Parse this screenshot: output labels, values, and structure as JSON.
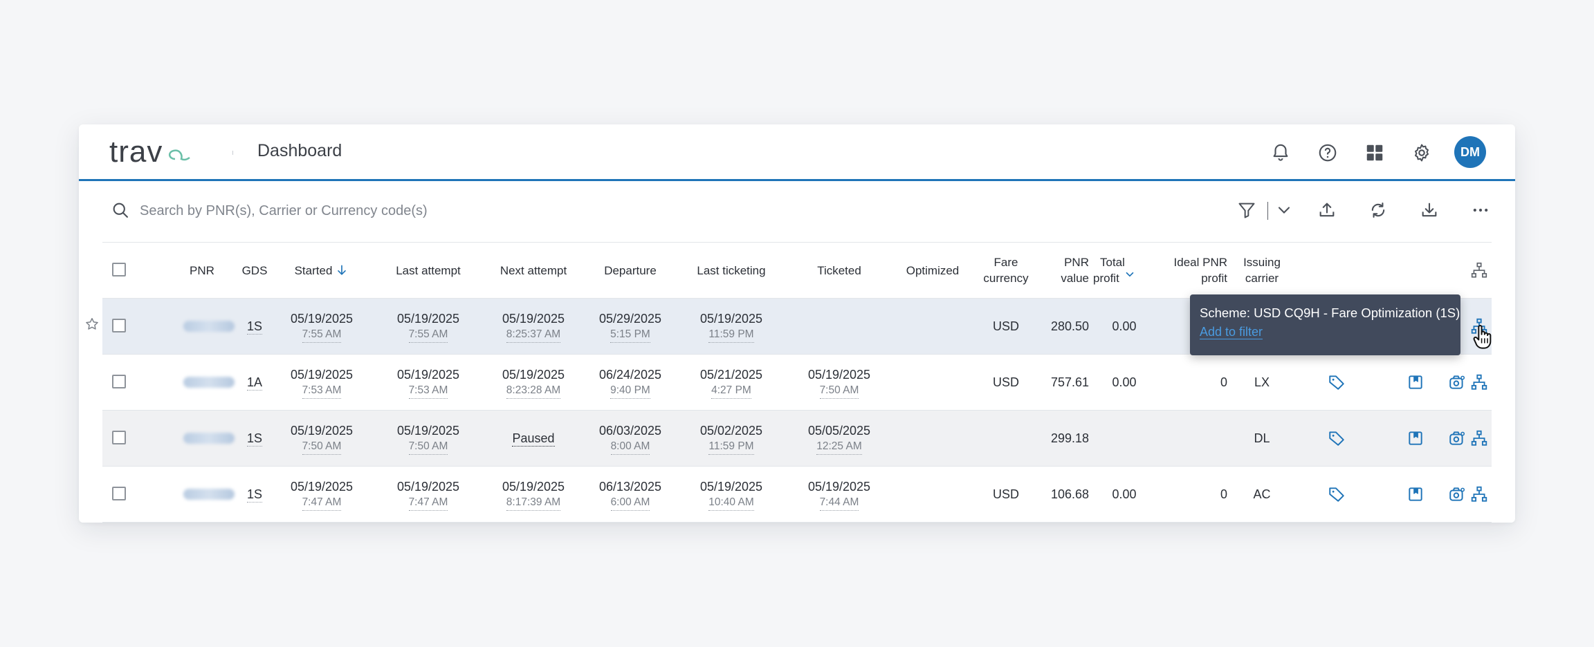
{
  "app": {
    "logo_text": "trava",
    "page_title": "Dashboard",
    "user_initials": "DM"
  },
  "search": {
    "placeholder": "Search by PNR(s), Carrier or Currency code(s)"
  },
  "columns": {
    "pnr": "PNR",
    "gds": "GDS",
    "started": "Started",
    "last_attempt": "Last attempt",
    "next_attempt": "Next attempt",
    "departure": "Departure",
    "last_ticketing": "Last ticketing",
    "ticketed": "Ticketed",
    "optimized": "Optimized",
    "fare_currency": [
      "Fare",
      "currency"
    ],
    "pnr_value": [
      "PNR",
      "value"
    ],
    "total_profit": [
      "Total",
      "profit"
    ],
    "ideal_pnr_profit": [
      "Ideal PNR",
      "profit"
    ],
    "issuing_carrier": [
      "Issuing",
      "carrier"
    ]
  },
  "rows": [
    {
      "gds": "1S",
      "started": [
        "05/19/2025",
        "7:55 AM"
      ],
      "last_attempt": [
        "05/19/2025",
        "7:55 AM"
      ],
      "next_attempt": [
        "05/19/2025",
        "8:25:37 AM"
      ],
      "departure": [
        "05/29/2025",
        "5:15 PM"
      ],
      "last_ticketing": [
        "05/19/2025",
        "11:59 PM"
      ],
      "ticketed": [
        "",
        ""
      ],
      "fare_currency": "USD",
      "pnr_value": "280.50",
      "total_profit": "0.00",
      "ideal_pnr_profit": "",
      "issuing_carrier": ""
    },
    {
      "gds": "1A",
      "started": [
        "05/19/2025",
        "7:53 AM"
      ],
      "last_attempt": [
        "05/19/2025",
        "7:53 AM"
      ],
      "next_attempt": [
        "05/19/2025",
        "8:23:28 AM"
      ],
      "departure": [
        "06/24/2025",
        "9:40 PM"
      ],
      "last_ticketing": [
        "05/21/2025",
        "4:27 PM"
      ],
      "ticketed": [
        "05/19/2025",
        "7:50 AM"
      ],
      "fare_currency": "USD",
      "pnr_value": "757.61",
      "total_profit": "0.00",
      "ideal_pnr_profit": "0",
      "issuing_carrier": "LX"
    },
    {
      "gds": "1S",
      "started": [
        "05/19/2025",
        "7:50 AM"
      ],
      "last_attempt": [
        "05/19/2025",
        "7:50 AM"
      ],
      "next_attempt": [
        "Paused",
        ""
      ],
      "departure": [
        "06/03/2025",
        "8:00 AM"
      ],
      "last_ticketing": [
        "05/02/2025",
        "11:59 PM"
      ],
      "ticketed": [
        "05/05/2025",
        "12:25 AM"
      ],
      "fare_currency": "",
      "pnr_value": "299.18",
      "total_profit": "",
      "ideal_pnr_profit": "",
      "issuing_carrier": "DL"
    },
    {
      "gds": "1S",
      "started": [
        "05/19/2025",
        "7:47 AM"
      ],
      "last_attempt": [
        "05/19/2025",
        "7:47 AM"
      ],
      "next_attempt": [
        "05/19/2025",
        "8:17:39 AM"
      ],
      "departure": [
        "06/13/2025",
        "6:00 AM"
      ],
      "last_ticketing": [
        "05/19/2025",
        "10:40 AM"
      ],
      "ticketed": [
        "05/19/2025",
        "7:44 AM"
      ],
      "fare_currency": "USD",
      "pnr_value": "106.68",
      "total_profit": "0.00",
      "ideal_pnr_profit": "0",
      "issuing_carrier": "AC"
    }
  ],
  "tooltip": {
    "text": "Scheme: USD CQ9H - Fare Optimization (1S)",
    "link": "Add to filter"
  },
  "icons": {
    "header": [
      "bell-icon",
      "help-icon",
      "apps-grid-icon",
      "settings-gear-icon"
    ],
    "toolbar": [
      "filter-icon",
      "chevron-down-icon",
      "upload-icon",
      "refresh-icon",
      "download-icon",
      "more-icon"
    ],
    "row_actions": [
      "tag-icon",
      "bookmark-icon",
      "camera-settings-icon",
      "hierarchy-icon"
    ]
  },
  "colors": {
    "accent": "#1f74b8",
    "tooltip_bg": "#414a5c",
    "selected_row": "#e7ecf3"
  }
}
